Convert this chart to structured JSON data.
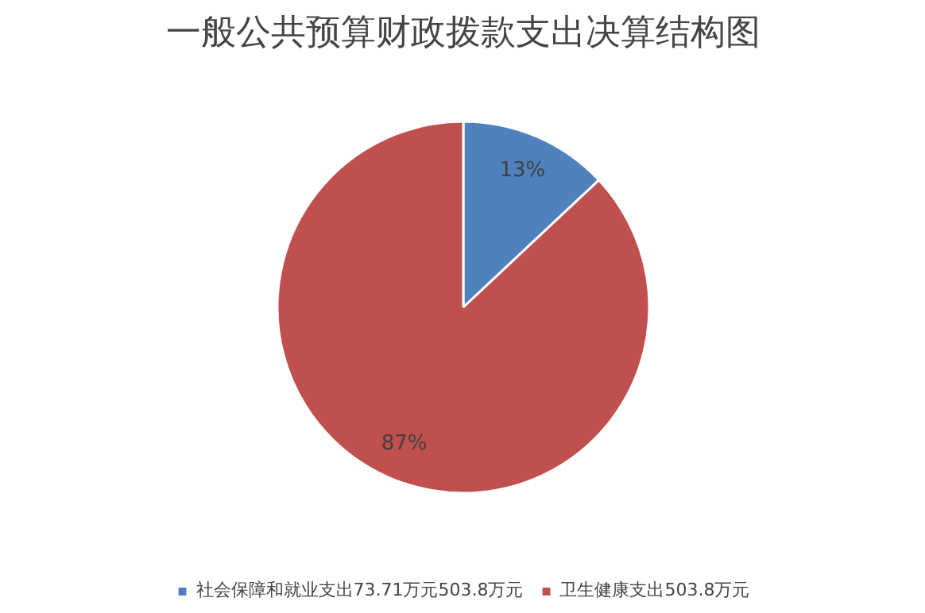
{
  "chart_data": {
    "type": "pie",
    "title": "一般公共预算财政拨款支出决算结构图",
    "categories": [
      "社会保障和就业支出73.71万元503.8万元",
      "卫生健康支出503.8万元"
    ],
    "values": [
      13,
      87
    ],
    "colors": [
      "#4f81bd",
      "#c0504d"
    ],
    "value_labels": [
      "13%",
      "87%"
    ],
    "legend": "bottom"
  }
}
